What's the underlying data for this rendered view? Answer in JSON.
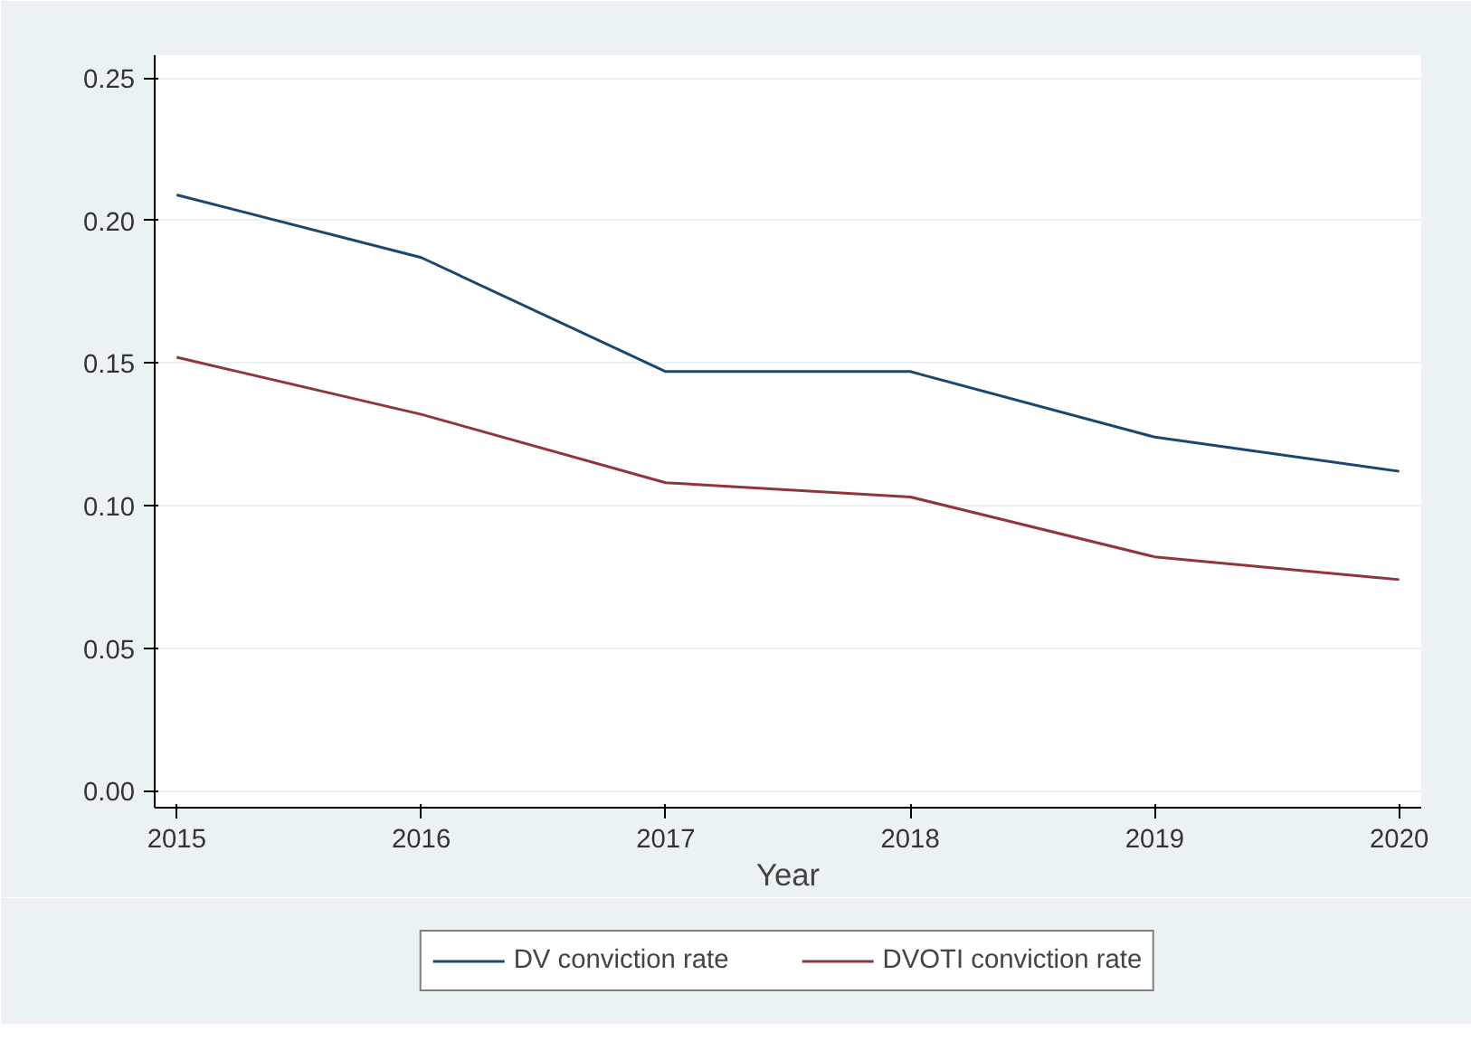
{
  "chart_data": {
    "type": "line",
    "xlabel": "Year",
    "x": [
      2015,
      2016,
      2017,
      2018,
      2019,
      2020
    ],
    "series": [
      {
        "name": "DV conviction rate",
        "color": "#1a476f",
        "values": [
          0.209,
          0.187,
          0.147,
          0.147,
          0.124,
          0.112
        ]
      },
      {
        "name": "DVOTI conviction rate",
        "color": "#90353b",
        "values": [
          0.152,
          0.132,
          0.108,
          0.103,
          0.082,
          0.074
        ]
      }
    ],
    "xlim": [
      2014.91,
      2020.09
    ],
    "xticks": [
      2015,
      2016,
      2017,
      2018,
      2019,
      2020
    ],
    "ylim": [
      -0.006,
      0.258
    ],
    "yticks": [
      {
        "value": 0,
        "label": "0.00"
      },
      {
        "value": 0.05,
        "label": "0.05"
      },
      {
        "value": 0.1,
        "label": "0.10"
      },
      {
        "value": 0.15,
        "label": "0.15"
      },
      {
        "value": 0.2,
        "label": "0.20"
      },
      {
        "value": 0.25,
        "label": "0.25"
      }
    ],
    "grid": "y",
    "legend": "bottom",
    "marker": "none",
    "line_style": "solid"
  }
}
